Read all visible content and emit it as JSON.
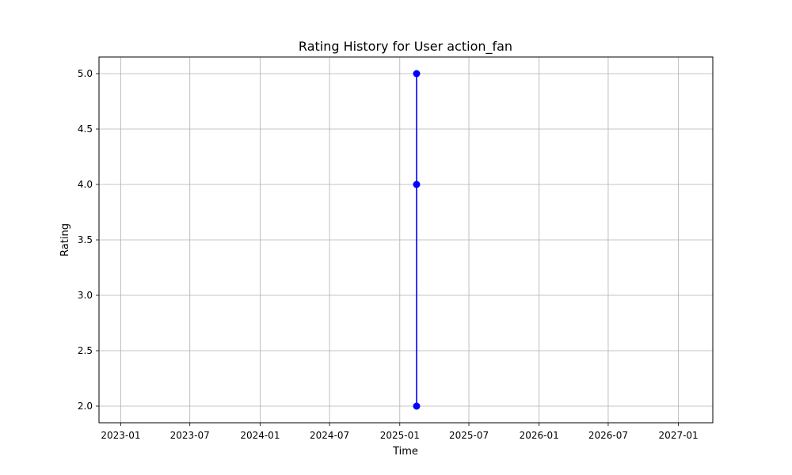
{
  "chart_data": {
    "type": "line",
    "title": "Rating History for User action_fan",
    "xlabel": "Time",
    "ylabel": "Rating",
    "grid": true,
    "line_color": "#0000ff",
    "x_ticks": [
      "2023-01",
      "2023-07",
      "2024-01",
      "2024-07",
      "2025-01",
      "2025-07",
      "2026-01",
      "2026-07",
      "2027-01"
    ],
    "y_ticks": [
      "2.0",
      "2.5",
      "3.0",
      "3.5",
      "4.0",
      "4.5",
      "5.0"
    ],
    "xlim": [
      "2022-11-05",
      "2027-04-01"
    ],
    "ylim": [
      1.85,
      5.15
    ],
    "series": [
      {
        "x": [
          "2025-02-14",
          "2025-02-14",
          "2025-02-14"
        ],
        "y": [
          5.0,
          4.0,
          2.0
        ]
      }
    ]
  }
}
